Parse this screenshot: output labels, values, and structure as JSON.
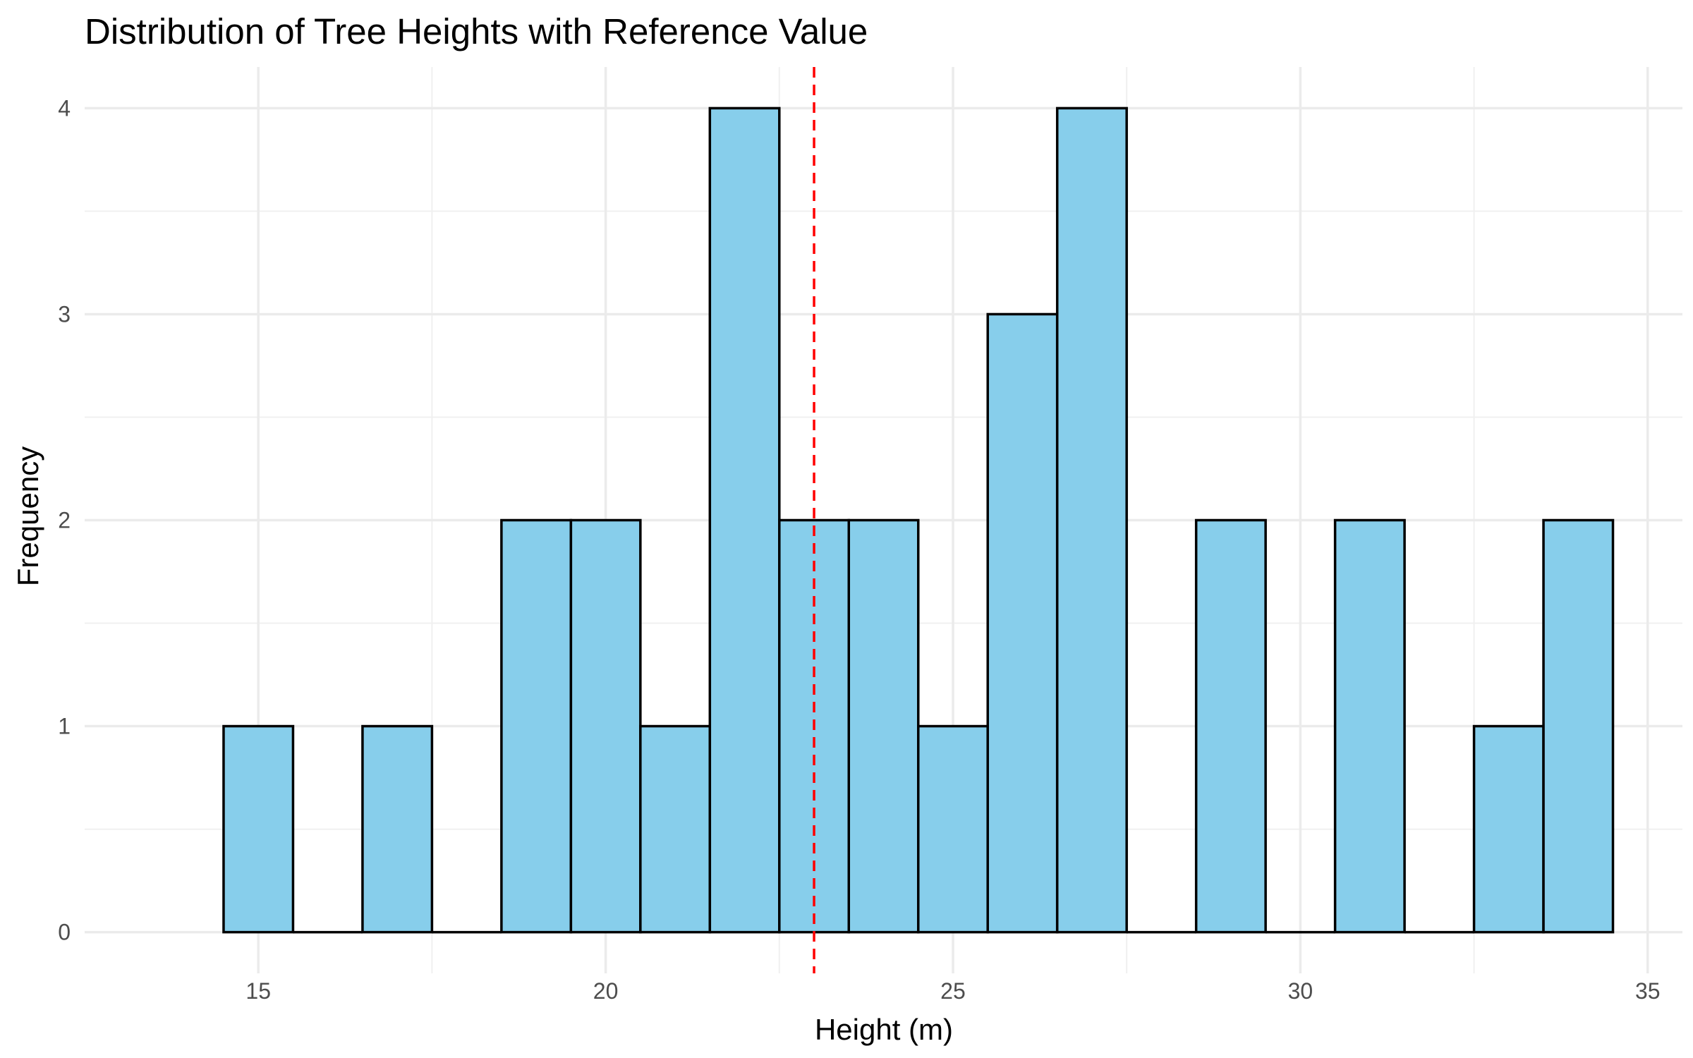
{
  "chart_data": {
    "type": "bar",
    "title": "Distribution of Tree Heights with Reference Value",
    "xlabel": "Height (m)",
    "ylabel": "Frequency",
    "xlim": [
      12.5,
      35.5
    ],
    "ylim": [
      -0.2,
      4.2
    ],
    "x_ticks": [
      15,
      20,
      25,
      30,
      35
    ],
    "x_tick_labels": [
      "15",
      "20",
      "25",
      "30",
      "35"
    ],
    "y_ticks": [
      0,
      1,
      2,
      3,
      4
    ],
    "y_tick_labels": [
      "0",
      "1",
      "2",
      "3",
      "4"
    ],
    "bin_width": 1,
    "bin_centers": [
      15,
      16,
      17,
      18,
      19,
      20,
      21,
      22,
      23,
      24,
      25,
      26,
      27,
      28,
      29,
      30,
      31,
      32,
      33,
      34
    ],
    "values": [
      1,
      0,
      1,
      0,
      2,
      2,
      1,
      4,
      2,
      2,
      1,
      3,
      4,
      0,
      2,
      0,
      2,
      0,
      1,
      2
    ],
    "reference_line": {
      "x": 23,
      "color": "#ff0000",
      "style": "dashed"
    },
    "bar_fill": "#87ceeb",
    "bar_stroke": "#000000",
    "grid": true,
    "legend": "none"
  }
}
